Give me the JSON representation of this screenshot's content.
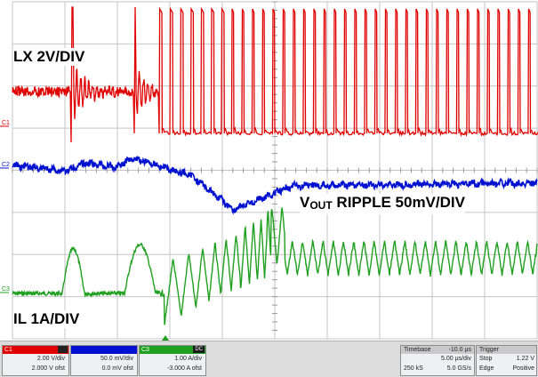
{
  "screen": {
    "labels": {
      "lx": "LX 2V/DIV",
      "vout_main": "V",
      "vout_sub": "OUT",
      "vout_rest": " RIPPLE 50mV/DIV",
      "il": "IL 1A/DIV"
    },
    "markers": {
      "c1": "C1",
      "c2": "C2",
      "c3": "C3"
    },
    "colors": {
      "ch1": "#e00000",
      "ch2": "#0010d0",
      "ch3": "#20a020",
      "grid": "#c4c4c4"
    }
  },
  "channels": [
    {
      "id": "C1",
      "scale": "2.00 V/div",
      "offset": "2.000 V ofst",
      "color": "#e00000"
    },
    {
      "id": "",
      "scale": "50.0 mV/div",
      "offset": "0.0 mV ofst",
      "color": "#0010d0"
    },
    {
      "id": "C3",
      "tag": "DC",
      "scale": "1.00 A/div",
      "offset": "-3.000 A ofst",
      "color": "#20a020"
    }
  ],
  "timebase": {
    "title": "Timebase",
    "value": "-10.0 µs",
    "div": "5.00 µs/div",
    "samples": "250 kS",
    "rate": "5.0 GS/s"
  },
  "trigger": {
    "title": "Trigger",
    "mode": "Stop",
    "level": "1.22 V",
    "type": "Edge",
    "slope": "Positive"
  }
}
